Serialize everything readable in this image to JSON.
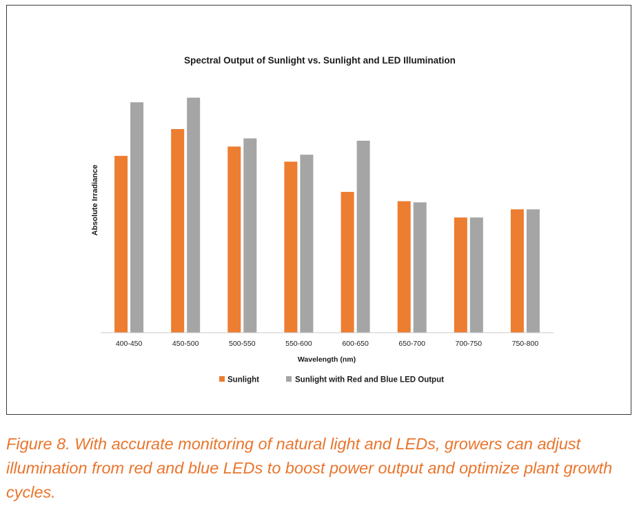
{
  "chart_data": {
    "type": "bar",
    "title": "Spectral Output of Sunlight vs. Sunlight and LED Illumination",
    "xlabel": "Wavelength (nm)",
    "ylabel": "Absolute Irradiance",
    "categories": [
      "400-450",
      "450-500",
      "500-550",
      "550-600",
      "600-650",
      "650-700",
      "700-750",
      "750-800"
    ],
    "series": [
      {
        "name": "Sunlight",
        "color": "#ed7d31",
        "values": [
          76,
          87.5,
          80,
          73.5,
          60.5,
          56.5,
          49.5,
          53
        ]
      },
      {
        "name": "Sunlight with Red and Blue LED Output",
        "color": "#a5a5a5",
        "values": [
          99,
          101,
          83.5,
          76.5,
          82.5,
          56,
          49.5,
          53
        ]
      }
    ],
    "ylim": [
      0,
      105
    ],
    "y_axis_ticks_shown": false,
    "grid": false,
    "legend": "bottom"
  },
  "caption": "Figure 8. With accurate monitoring of natural light and LEDs, growers can adjust illumination from red and blue LEDs to boost power output and optimize plant growth cycles."
}
